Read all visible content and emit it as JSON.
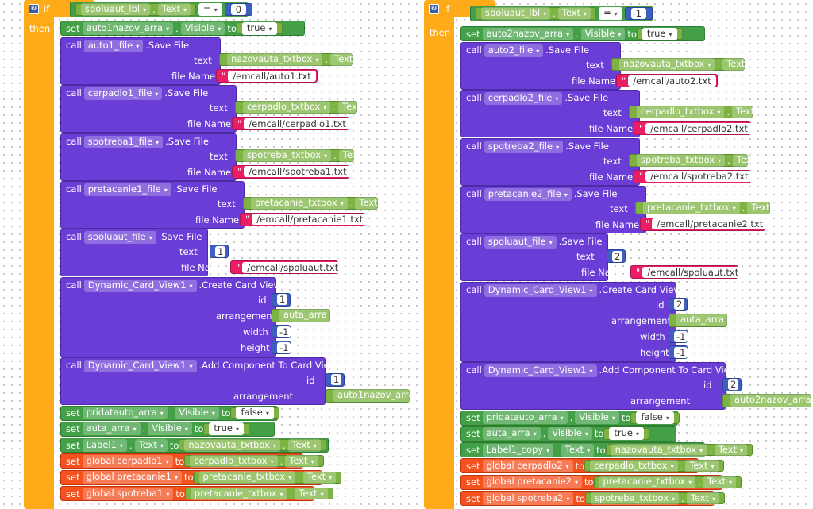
{
  "left": {
    "if_kw": "if",
    "then_kw": "then",
    "cond": {
      "component": "spoluaut_lbl",
      "prop": "Text",
      "op": "=",
      "value": "0"
    },
    "set_visible": {
      "kw": "set",
      "component": "auto1nazov_arra",
      "prop": "Visible",
      "to": "to",
      "value": "true"
    },
    "save_files": [
      {
        "call": "call",
        "component": "auto1_file",
        "method": ".Save File",
        "text_label": "text",
        "text_component": "nazovauta_txtbox",
        "text_prop": "Text",
        "file_label": "file Name",
        "file_name": "/emcall/auto1.txt"
      },
      {
        "call": "call",
        "component": "cerpadlo1_file",
        "method": ".Save File",
        "text_label": "text",
        "text_component": "cerpadlo_txtbox",
        "text_prop": "Text",
        "file_label": "file Name",
        "file_name": "/emcall/cerpadlo1.txt"
      },
      {
        "call": "call",
        "component": "spotreba1_file",
        "method": ".Save File",
        "text_label": "text",
        "text_component": "spotreba_txtbox",
        "text_prop": "Text",
        "file_label": "file Name",
        "file_name": "/emcall/spotreba1.txt"
      },
      {
        "call": "call",
        "component": "pretacanie1_file",
        "method": ".Save File",
        "text_label": "text",
        "text_component": "pretacanie_txtbox",
        "text_prop": "Text",
        "file_label": "file Name",
        "file_name": "/emcall/pretacanie1.txt"
      }
    ],
    "spoluaut_save": {
      "call": "call",
      "component": "spoluaut_file",
      "method": ".Save File",
      "text_label": "text",
      "value": "1",
      "file_label": "file Name",
      "file_name": "/emcall/spoluaut.txt"
    },
    "create_card": {
      "call": "call",
      "component": "Dynamic_Card_View1",
      "method": ".Create Card View",
      "id_label": "id",
      "id": "1",
      "arr_label": "arrangement",
      "arr": "auta_arra",
      "w_label": "width",
      "w": "-1",
      "h_label": "height",
      "h": "-1"
    },
    "add_comp": {
      "call": "call",
      "component": "Dynamic_Card_View1",
      "method": ".Add Component To Card View",
      "id_label": "id",
      "id": "1",
      "arr_label": "arrangement",
      "arr": "auto1nazov_arra"
    },
    "sets": [
      {
        "kw": "set",
        "component": "pridatauto_arra",
        "prop": "Visible",
        "to": "to",
        "value": "false",
        "type": "bool"
      },
      {
        "kw": "set",
        "component": "auta_arra",
        "prop": "Visible",
        "to": "to",
        "value": "true",
        "type": "bool"
      },
      {
        "kw": "set",
        "component": "Label1",
        "prop": "Text",
        "to": "to",
        "value_component": "nazovauta_txtbox",
        "value_prop": "Text",
        "type": "comp"
      }
    ],
    "globals": [
      {
        "kw": "set",
        "name": "global cerpadlo1",
        "to": "to",
        "value_component": "cerpadlo_txtbox",
        "value_prop": "Text"
      },
      {
        "kw": "set",
        "name": "global pretacanie1",
        "to": "to",
        "value_component": "pretacanie_txtbox",
        "value_prop": "Text"
      },
      {
        "kw": "set",
        "name": "global spotreba1",
        "to": "to",
        "value_component": "pretacanie_txtbox",
        "value_prop": "Text"
      }
    ]
  },
  "right": {
    "if_kw": "if",
    "then_kw": "then",
    "cond": {
      "component": "spoluaut_lbl",
      "prop": "Text",
      "op": "=",
      "value": "1"
    },
    "set_visible": {
      "kw": "set",
      "component": "auto2nazov_arra",
      "prop": "Visible",
      "to": "to",
      "value": "true"
    },
    "save_files": [
      {
        "call": "call",
        "component": "auto2_file",
        "method": ".Save File",
        "text_label": "text",
        "text_component": "nazovauta_txtbox",
        "text_prop": "Text",
        "file_label": "file Name",
        "file_name": "/emcall/auto2.txt"
      },
      {
        "call": "call",
        "component": "cerpadlo2_file",
        "method": ".Save File",
        "text_label": "text",
        "text_component": "cerpadlo_txtbox",
        "text_prop": "Text",
        "file_label": "file Name",
        "file_name": "/emcall/cerpadlo2.txt"
      },
      {
        "call": "call",
        "component": "spotreba2_file",
        "method": ".Save File",
        "text_label": "text",
        "text_component": "spotreba_txtbox",
        "text_prop": "Text",
        "file_label": "file Name",
        "file_name": "/emcall/spotreba2.txt"
      },
      {
        "call": "call",
        "component": "pretacanie2_file",
        "method": ".Save File",
        "text_label": "text",
        "text_component": "pretacanie_txtbox",
        "text_prop": "Text",
        "file_label": "file Name",
        "file_name": "/emcall/pretacanie2.txt"
      }
    ],
    "spoluaut_save": {
      "call": "call",
      "component": "spoluaut_file",
      "method": ".Save File",
      "text_label": "text",
      "value": "2",
      "file_label": "file Name",
      "file_name": "/emcall/spoluaut.txt"
    },
    "create_card": {
      "call": "call",
      "component": "Dynamic_Card_View1",
      "method": ".Create Card View",
      "id_label": "id",
      "id": "2",
      "arr_label": "arrangement",
      "arr": "auta_arra",
      "w_label": "width",
      "w": "-1",
      "h_label": "height",
      "h": "-1"
    },
    "add_comp": {
      "call": "call",
      "component": "Dynamic_Card_View1",
      "method": ".Add Component To Card View",
      "id_label": "id",
      "id": "2",
      "arr_label": "arrangement",
      "arr": "auto2nazov_arra"
    },
    "sets": [
      {
        "kw": "set",
        "component": "pridatauto_arra",
        "prop": "Visible",
        "to": "to",
        "value": "false",
        "type": "bool"
      },
      {
        "kw": "set",
        "component": "auta_arra",
        "prop": "Visible",
        "to": "to",
        "value": "true",
        "type": "bool"
      },
      {
        "kw": "set",
        "component": "Label1_copy",
        "prop": "Text",
        "to": "to",
        "value_component": "nazovauta_txtbox",
        "value_prop": "Text",
        "type": "comp"
      }
    ],
    "globals": [
      {
        "kw": "set",
        "name": "global cerpadlo2",
        "to": "to",
        "value_component": "cerpadlo_txtbox",
        "value_prop": "Text"
      },
      {
        "kw": "set",
        "name": "global pretacanie2",
        "to": "to",
        "value_component": "pretacanie_txtbox",
        "value_prop": "Text"
      },
      {
        "kw": "set",
        "name": "global spotreba2",
        "to": "to",
        "value_component": "spotreba_txtbox",
        "value_prop": "Text"
      }
    ]
  }
}
